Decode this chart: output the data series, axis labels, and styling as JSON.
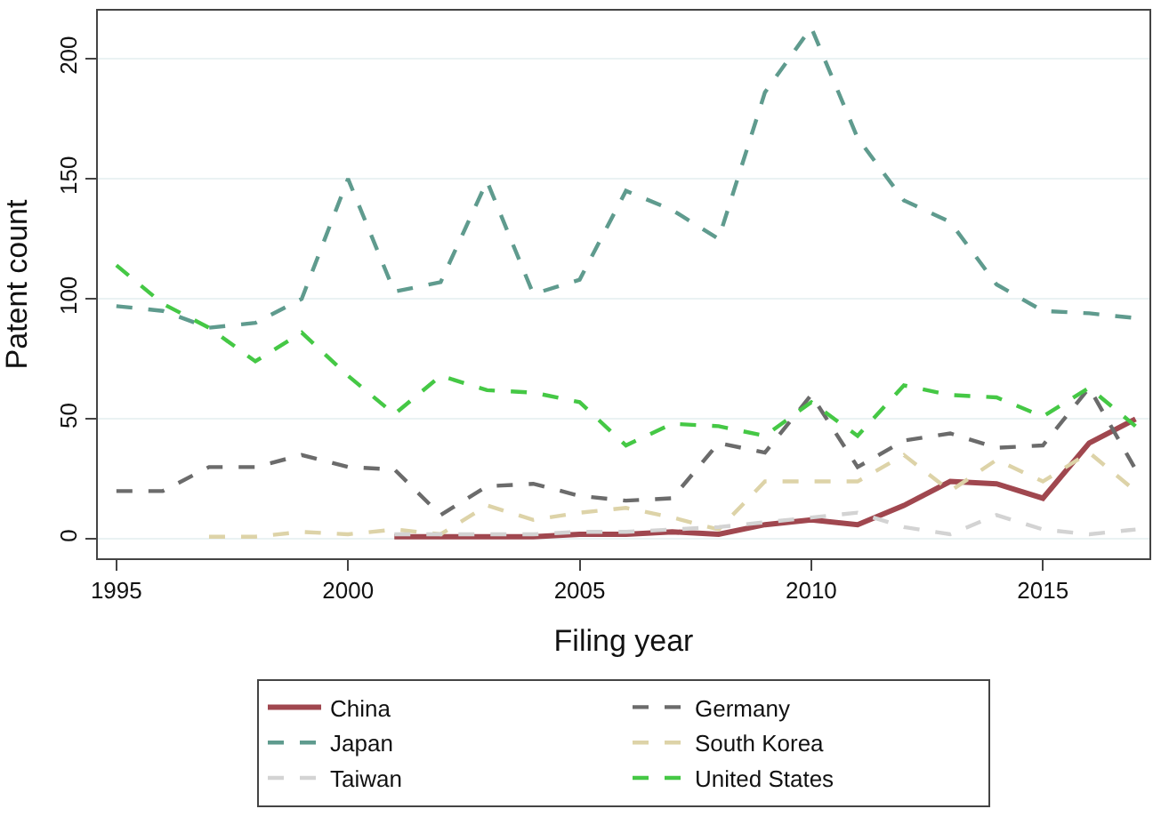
{
  "chart_data": {
    "type": "line",
    "xlabel": "Filing year",
    "ylabel": "Patent count",
    "x": [
      1995,
      1996,
      1997,
      1998,
      1999,
      2000,
      2001,
      2002,
      2003,
      2004,
      2005,
      2006,
      2007,
      2008,
      2009,
      2010,
      2011,
      2012,
      2013,
      2014,
      2015,
      2016,
      2017
    ],
    "xlim": [
      1994.6,
      2017.3
    ],
    "xticks": [
      1995,
      2000,
      2005,
      2010,
      2015
    ],
    "ylim": [
      -8,
      220
    ],
    "yticks": [
      0,
      50,
      100,
      150,
      200
    ],
    "grid": "y",
    "legend": "bottom",
    "marker": "none",
    "series": [
      {
        "name": "China",
        "color": "#a0474f",
        "line_style": "solid",
        "values": [
          null,
          null,
          null,
          null,
          null,
          null,
          1,
          1,
          1,
          1,
          2,
          2,
          3,
          2,
          6,
          8,
          6,
          14,
          24,
          23,
          17,
          40,
          50
        ]
      },
      {
        "name": "Germany",
        "color": "#6b6b6b",
        "line_style": "dashed",
        "values": [
          20,
          20,
          30,
          30,
          35,
          30,
          29,
          10,
          22,
          23,
          18,
          16,
          17,
          40,
          36,
          60,
          30,
          41,
          44,
          38,
          39,
          63,
          29
        ]
      },
      {
        "name": "Japan",
        "color": "#5f9b8e",
        "line_style": "dashed",
        "values": [
          97,
          95,
          88,
          90,
          100,
          150,
          103,
          107,
          149,
          102,
          108,
          145,
          137,
          125,
          186,
          213,
          167,
          141,
          132,
          106,
          95,
          94,
          92
        ]
      },
      {
        "name": "South Korea",
        "color": "#ddd3a8",
        "line_style": "dashed",
        "values": [
          null,
          null,
          1,
          1,
          3,
          2,
          4,
          2,
          14,
          8,
          11,
          13,
          9,
          4,
          24,
          24,
          24,
          35,
          20,
          33,
          24,
          36,
          20
        ]
      },
      {
        "name": "Taiwan",
        "color": "#d3d3d3",
        "line_style": "dashed",
        "values": [
          null,
          null,
          null,
          null,
          null,
          null,
          2,
          2,
          2,
          2,
          3,
          3,
          4,
          5,
          7,
          9,
          11,
          5,
          2,
          10,
          4,
          2,
          4
        ]
      },
      {
        "name": "United States",
        "color": "#45c845",
        "line_style": "dashed",
        "values": [
          114,
          98,
          88,
          74,
          86,
          68,
          52,
          68,
          62,
          61,
          57,
          39,
          48,
          47,
          43,
          57,
          43,
          64,
          60,
          59,
          51,
          63,
          47
        ]
      }
    ]
  }
}
